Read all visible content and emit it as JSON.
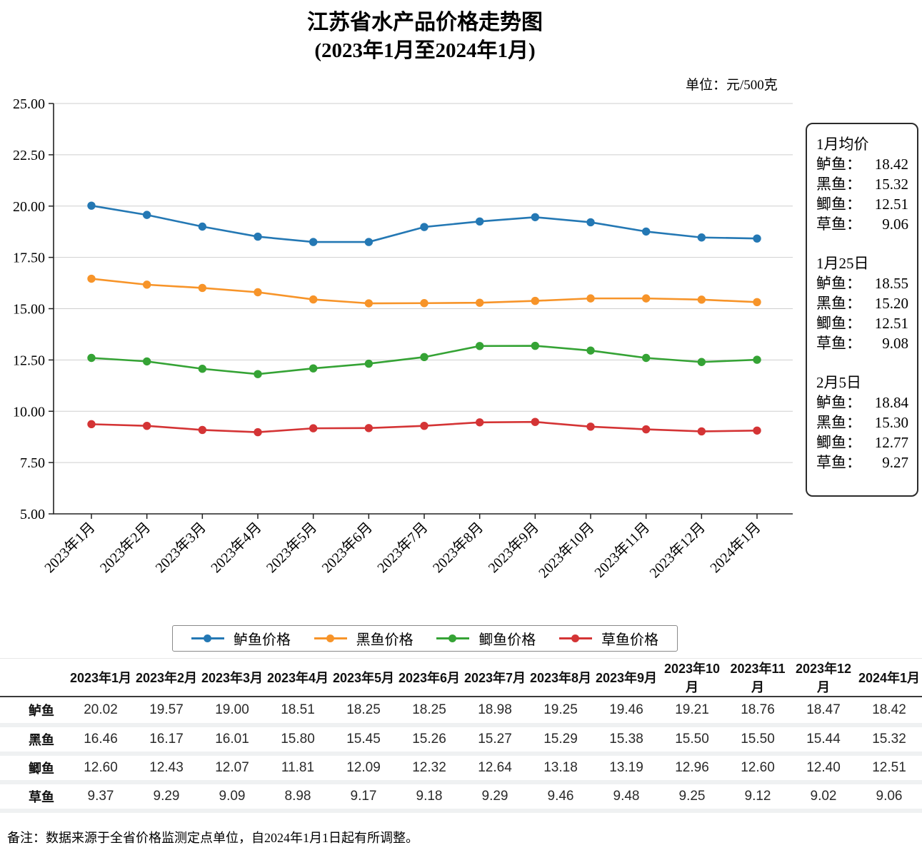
{
  "title": "江苏省水产品价格走势图",
  "subtitle": "(2023年1月至2024年1月)",
  "unit_label": "单位：元/500克",
  "colors": {
    "axis": "#222222",
    "grid": "#cfcfcf",
    "bass_blue": "#2478b4",
    "snakehead_orange": "#f79429",
    "crucian_green": "#35a335",
    "grass_red": "#d43435"
  },
  "chart_data": {
    "type": "line",
    "title": "江苏省水产品价格走势图 (2023年1月至2024年1月)",
    "xlabel": "",
    "ylabel": "元/500克",
    "ylim": [
      5,
      25
    ],
    "ytick_step": 2.5,
    "grid": true,
    "legend_position": "bottom",
    "categories": [
      "2023年1月",
      "2023年2月",
      "2023年3月",
      "2023年4月",
      "2023年5月",
      "2023年6月",
      "2023年7月",
      "2023年8月",
      "2023年9月",
      "2023年10月",
      "2023年11月",
      "2023年12月",
      "2024年1月"
    ],
    "series": [
      {
        "name": "鲈鱼价格",
        "short": "鲈鱼",
        "color": "#2478b4",
        "values": [
          20.02,
          19.57,
          19.0,
          18.51,
          18.25,
          18.25,
          18.98,
          19.25,
          19.46,
          19.21,
          18.76,
          18.47,
          18.42
        ]
      },
      {
        "name": "黑鱼价格",
        "short": "黑鱼",
        "color": "#f79429",
        "values": [
          16.46,
          16.17,
          16.01,
          15.8,
          15.45,
          15.26,
          15.27,
          15.29,
          15.38,
          15.5,
          15.5,
          15.44,
          15.32
        ]
      },
      {
        "name": "鲫鱼价格",
        "short": "鲫鱼",
        "color": "#35a335",
        "values": [
          12.6,
          12.43,
          12.07,
          11.81,
          12.09,
          12.32,
          12.64,
          13.18,
          13.19,
          12.96,
          12.6,
          12.4,
          12.51
        ]
      },
      {
        "name": "草鱼价格",
        "short": "草鱼",
        "color": "#d43435",
        "values": [
          9.37,
          9.29,
          9.09,
          8.98,
          9.17,
          9.18,
          9.29,
          9.46,
          9.48,
          9.25,
          9.12,
          9.02,
          9.06
        ]
      }
    ]
  },
  "stats_panel": {
    "sections": [
      {
        "heading": "1月均价",
        "rows": [
          {
            "label": "鲈鱼：",
            "value": "18.42"
          },
          {
            "label": "黑鱼：",
            "value": "15.32"
          },
          {
            "label": "鲫鱼：",
            "value": "12.51"
          },
          {
            "label": "草鱼：",
            "value": "9.06"
          }
        ]
      },
      {
        "heading": "1月25日",
        "rows": [
          {
            "label": "鲈鱼：",
            "value": "18.55"
          },
          {
            "label": "黑鱼：",
            "value": "15.20"
          },
          {
            "label": "鲫鱼：",
            "value": "12.51"
          },
          {
            "label": "草鱼：",
            "value": "9.08"
          }
        ]
      },
      {
        "heading": "2月5日",
        "rows": [
          {
            "label": "鲈鱼：",
            "value": "18.84"
          },
          {
            "label": "黑鱼：",
            "value": "15.30"
          },
          {
            "label": "鲫鱼：",
            "value": "12.77"
          },
          {
            "label": "草鱼：",
            "value": "9.27"
          }
        ]
      }
    ]
  },
  "footnote": "备注：数据来源于全省价格监测定点单位，自2024年1月1日起有所调整。"
}
